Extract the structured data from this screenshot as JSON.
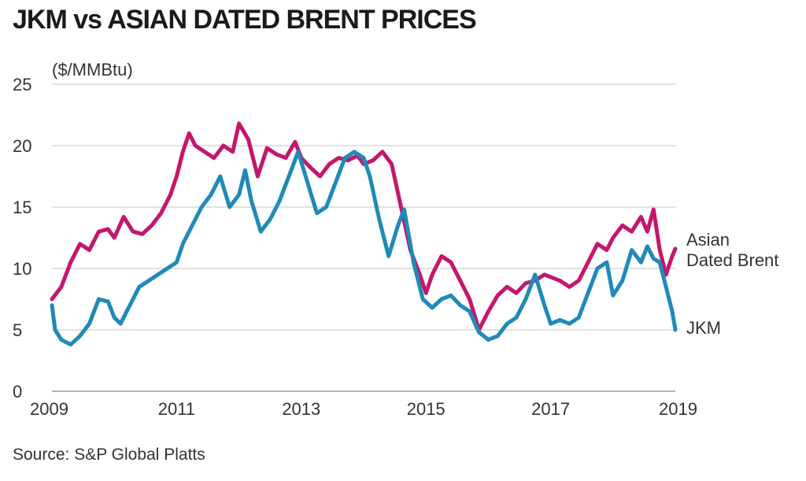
{
  "chart_data": {
    "type": "line",
    "title": "JKM vs ASIAN DATED BRENT PRICES",
    "ylabel": "($/MMBtu)",
    "xlabel": "",
    "source": "Source: S&P Global Platts",
    "xlim": [
      2009,
      2019
    ],
    "ylim": [
      0,
      25
    ],
    "x_ticks": [
      "2009",
      "2011",
      "2013",
      "2015",
      "2017",
      "2019"
    ],
    "y_ticks": [
      "0",
      "5",
      "10",
      "15",
      "20",
      "25"
    ],
    "grid": true,
    "legend": "direct labels at right end of lines",
    "series": [
      {
        "name_lines": [
          "Asian",
          "Dated Brent"
        ],
        "color": "#c4166c",
        "x": [
          2009.0,
          2009.15,
          2009.3,
          2009.45,
          2009.6,
          2009.75,
          2009.9,
          2010.0,
          2010.15,
          2010.3,
          2010.45,
          2010.6,
          2010.75,
          2010.9,
          2011.0,
          2011.1,
          2011.2,
          2011.3,
          2011.45,
          2011.6,
          2011.75,
          2011.9,
          2012.0,
          2012.15,
          2012.3,
          2012.45,
          2012.6,
          2012.75,
          2012.9,
          2013.0,
          2013.15,
          2013.3,
          2013.45,
          2013.6,
          2013.75,
          2013.9,
          2014.0,
          2014.15,
          2014.3,
          2014.45,
          2014.6,
          2014.75,
          2014.9,
          2015.0,
          2015.1,
          2015.25,
          2015.4,
          2015.55,
          2015.7,
          2015.85,
          2016.0,
          2016.15,
          2016.3,
          2016.45,
          2016.6,
          2016.75,
          2016.9,
          2017.0,
          2017.15,
          2017.3,
          2017.45,
          2017.6,
          2017.75,
          2017.9,
          2018.0,
          2018.15,
          2018.3,
          2018.45,
          2018.55,
          2018.65,
          2018.75,
          2018.85,
          2018.95,
          2019.0
        ],
        "values": [
          7.5,
          8.5,
          10.5,
          12.0,
          11.5,
          13.0,
          13.2,
          12.5,
          14.2,
          13.0,
          12.8,
          13.5,
          14.5,
          16.0,
          17.5,
          19.5,
          21.0,
          20.0,
          19.5,
          19.0,
          20.0,
          19.5,
          21.8,
          20.5,
          17.5,
          19.8,
          19.3,
          19.0,
          20.3,
          19.0,
          18.2,
          17.5,
          18.5,
          19.0,
          18.8,
          19.2,
          18.5,
          18.8,
          19.5,
          18.5,
          15.0,
          11.5,
          9.5,
          8.0,
          9.5,
          11.0,
          10.5,
          9.0,
          7.5,
          5.0,
          6.5,
          7.8,
          8.5,
          8.0,
          8.8,
          9.0,
          9.5,
          9.3,
          9.0,
          8.5,
          9.0,
          10.5,
          12.0,
          11.5,
          12.5,
          13.5,
          13.0,
          14.2,
          13.0,
          14.8,
          11.5,
          9.5,
          11.0,
          11.6
        ]
      },
      {
        "name_lines": [
          "JKM"
        ],
        "color": "#1f8ab8",
        "x": [
          2009.0,
          2009.05,
          2009.15,
          2009.3,
          2009.45,
          2009.6,
          2009.75,
          2009.9,
          2010.0,
          2010.1,
          2010.25,
          2010.4,
          2010.55,
          2010.7,
          2010.85,
          2011.0,
          2011.1,
          2011.25,
          2011.4,
          2011.55,
          2011.7,
          2011.85,
          2012.0,
          2012.1,
          2012.2,
          2012.35,
          2012.5,
          2012.65,
          2012.8,
          2012.95,
          2013.1,
          2013.25,
          2013.4,
          2013.55,
          2013.7,
          2013.85,
          2014.0,
          2014.1,
          2014.25,
          2014.4,
          2014.55,
          2014.65,
          2014.8,
          2014.95,
          2015.1,
          2015.25,
          2015.4,
          2015.55,
          2015.7,
          2015.85,
          2016.0,
          2016.15,
          2016.3,
          2016.45,
          2016.6,
          2016.75,
          2016.9,
          2017.0,
          2017.15,
          2017.3,
          2017.45,
          2017.6,
          2017.75,
          2017.9,
          2018.0,
          2018.15,
          2018.3,
          2018.45,
          2018.55,
          2018.65,
          2018.75,
          2018.85,
          2018.95,
          2019.0
        ],
        "values": [
          7.0,
          5.0,
          4.2,
          3.8,
          4.5,
          5.5,
          7.5,
          7.3,
          6.0,
          5.5,
          7.0,
          8.5,
          9.0,
          9.5,
          10.0,
          10.5,
          12.0,
          13.5,
          15.0,
          16.0,
          17.5,
          15.0,
          16.0,
          18.0,
          15.5,
          13.0,
          14.0,
          15.5,
          17.5,
          19.5,
          17.0,
          14.5,
          15.0,
          17.0,
          19.0,
          19.5,
          19.0,
          17.5,
          14.0,
          11.0,
          13.5,
          14.8,
          10.5,
          7.5,
          6.8,
          7.5,
          7.8,
          7.0,
          6.5,
          4.8,
          4.2,
          4.5,
          5.5,
          6.0,
          7.5,
          9.5,
          7.0,
          5.5,
          5.8,
          5.5,
          6.0,
          8.0,
          10.0,
          10.5,
          7.8,
          9.0,
          11.5,
          10.5,
          11.8,
          10.8,
          10.5,
          8.5,
          6.5,
          5.0
        ]
      }
    ]
  }
}
